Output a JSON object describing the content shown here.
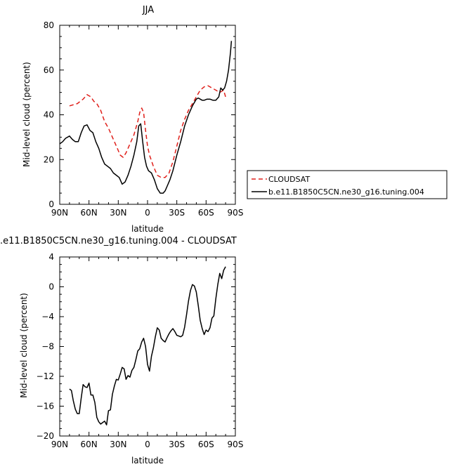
{
  "chart_data": [
    {
      "type": "line",
      "title": "JJA",
      "xlabel": "latitude",
      "ylabel": "Mid-level cloud (percent)",
      "xlim": [
        -90,
        90
      ],
      "ylim": [
        0,
        80
      ],
      "x_ticks": [
        -90,
        -60,
        -30,
        0,
        30,
        60,
        90
      ],
      "x_tick_labels": [
        "90N",
        "60N",
        "30N",
        "0",
        "30S",
        "60S",
        "90S"
      ],
      "y_ticks": [
        0,
        20,
        40,
        60,
        80
      ],
      "y_tick_labels": [
        "0",
        "20",
        "40",
        "60",
        "80"
      ],
      "legend_position": "right",
      "series": [
        {
          "name": "CLOUDSAT",
          "color": "#e0201b",
          "style": "dashed",
          "x": [
            -80,
            -72,
            -66,
            -62,
            -58,
            -55,
            -52,
            -48,
            -44,
            -40,
            -36,
            -32,
            -28,
            -25,
            -22,
            -18,
            -14,
            -10,
            -8,
            -6,
            -4,
            -2,
            0,
            2,
            6,
            10,
            14,
            18,
            22,
            26,
            30,
            34,
            38,
            42,
            46,
            50,
            54,
            58,
            62,
            66,
            70,
            74,
            78,
            80
          ],
          "y": [
            44,
            45,
            47,
            49,
            48,
            46,
            45,
            42,
            37,
            34,
            30,
            26,
            22,
            21,
            23,
            27,
            31,
            37,
            41,
            43,
            41,
            33,
            26,
            22,
            17,
            13,
            12,
            12,
            14,
            19,
            26,
            33,
            38,
            42,
            45,
            48,
            51,
            52.5,
            53,
            52,
            51,
            50,
            51,
            48
          ]
        },
        {
          "name": "b.e11.B1850C5CN.ne30_g16.tuning.004",
          "color": "#000000",
          "style": "solid",
          "x": [
            -90,
            -87,
            -84,
            -80,
            -77,
            -74,
            -71,
            -68,
            -65,
            -62,
            -59,
            -56,
            -53,
            -50,
            -47,
            -44,
            -41,
            -38,
            -35,
            -32,
            -29,
            -26,
            -23,
            -20,
            -17,
            -14,
            -11,
            -9,
            -7,
            -5,
            -3,
            -1,
            1,
            4,
            7,
            10,
            13,
            16,
            18,
            20,
            23,
            26,
            30,
            34,
            38,
            42,
            46,
            50,
            52,
            54,
            56,
            58,
            61,
            64,
            67,
            70,
            73,
            75,
            77,
            79,
            81,
            83,
            85,
            86
          ],
          "y": [
            27,
            28,
            29.5,
            30.5,
            29,
            28,
            28,
            32,
            35,
            35.5,
            33,
            32,
            28,
            25,
            21,
            18,
            17,
            16,
            14,
            13,
            12,
            9,
            10,
            13,
            17,
            22,
            28,
            35,
            36,
            28,
            21,
            17,
            15,
            14,
            11,
            7,
            5,
            5,
            6,
            8,
            11,
            15,
            22,
            28,
            35,
            40,
            44,
            47,
            47.5,
            47,
            46.5,
            46.5,
            47,
            47,
            46.5,
            46.5,
            48,
            52,
            51,
            52,
            55,
            60,
            68,
            73
          ]
        }
      ]
    },
    {
      "type": "line",
      "title": ".e11.B1850C5CN.ne30_g16.tuning.004 - CLOUDSAT",
      "xlabel": "latitude",
      "ylabel": "Mid-level cloud (percent)",
      "xlim": [
        -90,
        90
      ],
      "ylim": [
        -20,
        4
      ],
      "x_ticks": [
        -90,
        -60,
        -30,
        0,
        30,
        60,
        90
      ],
      "x_tick_labels": [
        "90N",
        "60N",
        "30N",
        "0",
        "30S",
        "60S",
        "90S"
      ],
      "y_ticks": [
        -20,
        -16,
        -12,
        -8,
        -4,
        0,
        4
      ],
      "y_tick_labels": [
        "−20",
        "−16",
        "−12",
        "−8",
        "−4",
        "0",
        "4"
      ],
      "series": [
        {
          "name": "",
          "color": "#000000",
          "style": "solid",
          "x": [
            -80,
            -78,
            -76,
            -74,
            -72,
            -70,
            -68,
            -66,
            -64,
            -62,
            -60,
            -58,
            -56,
            -54,
            -52,
            -50,
            -48,
            -46,
            -44,
            -42,
            -40,
            -38,
            -36,
            -34,
            -32,
            -30,
            -28,
            -26,
            -24,
            -22,
            -20,
            -18,
            -16,
            -14,
            -12,
            -10,
            -8,
            -6,
            -4,
            -2,
            0,
            2,
            4,
            6,
            8,
            10,
            12,
            14,
            16,
            18,
            20,
            22,
            24,
            26,
            28,
            30,
            32,
            34,
            36,
            38,
            40,
            42,
            44,
            46,
            48,
            50,
            52,
            54,
            56,
            58,
            60,
            62,
            64,
            66,
            68,
            70,
            72,
            74,
            76,
            78,
            80
          ],
          "y": [
            -13.7,
            -13.9,
            -15.3,
            -16.4,
            -17,
            -17,
            -14.9,
            -13.1,
            -13.4,
            -13.5,
            -12.9,
            -14.5,
            -14.5,
            -15.5,
            -17.5,
            -18.1,
            -18.4,
            -18.2,
            -18,
            -18.5,
            -16.6,
            -16.5,
            -14.4,
            -13.3,
            -12.4,
            -12.5,
            -11.7,
            -10.8,
            -11,
            -12.4,
            -11.9,
            -12.1,
            -11.2,
            -10.8,
            -9.8,
            -8.6,
            -8.3,
            -7.4,
            -6.9,
            -8,
            -10.4,
            -11.3,
            -9.3,
            -8.2,
            -6.7,
            -5.5,
            -5.8,
            -6.9,
            -7.2,
            -7.4,
            -6.8,
            -6.3,
            -5.9,
            -5.6,
            -6,
            -6.5,
            -6.6,
            -6.7,
            -6.5,
            -5.4,
            -3.7,
            -1.9,
            -0.5,
            0.3,
            0.1,
            -0.7,
            -2.5,
            -4.5,
            -5.6,
            -6.4,
            -5.8,
            -6,
            -5.5,
            -4.2,
            -3.9,
            -1.6,
            0.3,
            1.8,
            1.1,
            2.2,
            2.7
          ]
        }
      ]
    }
  ]
}
